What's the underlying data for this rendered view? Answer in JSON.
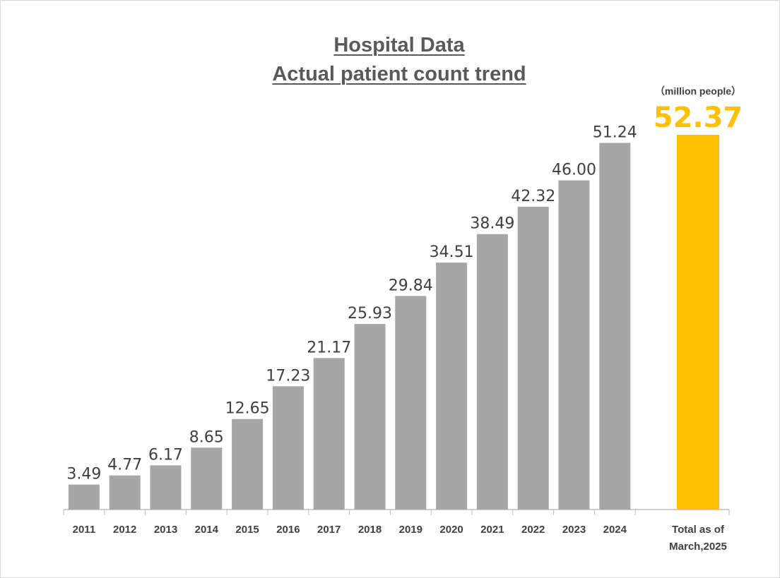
{
  "chart_data": {
    "type": "bar",
    "title": "Hospital Data",
    "subtitle": "Actual patient count trend",
    "unit_label": "（million people）",
    "categories": [
      "2011",
      "2012",
      "2013",
      "2014",
      "2015",
      "2016",
      "2017",
      "2018",
      "2019",
      "2020",
      "2021",
      "2022",
      "2023",
      "2024"
    ],
    "values": [
      3.49,
      4.77,
      6.17,
      8.65,
      12.65,
      17.23,
      21.17,
      25.93,
      29.84,
      34.51,
      38.49,
      42.32,
      46.0,
      51.24
    ],
    "value_labels": [
      "3.49",
      "4.77",
      "6.17",
      "8.65",
      "12.65",
      "17.23",
      "21.17",
      "25.93",
      "29.84",
      "34.51",
      "38.49",
      "42.32",
      "46.00",
      "51.24"
    ],
    "highlight": {
      "category_lines": [
        "Total as of",
        "March,2025"
      ],
      "value": 52.37,
      "value_label": "52.37",
      "color": "#ffc000"
    },
    "bar_color": "#a6a6a6",
    "ylim": [
      0,
      52.37
    ],
    "grid": false,
    "legend": "none"
  }
}
